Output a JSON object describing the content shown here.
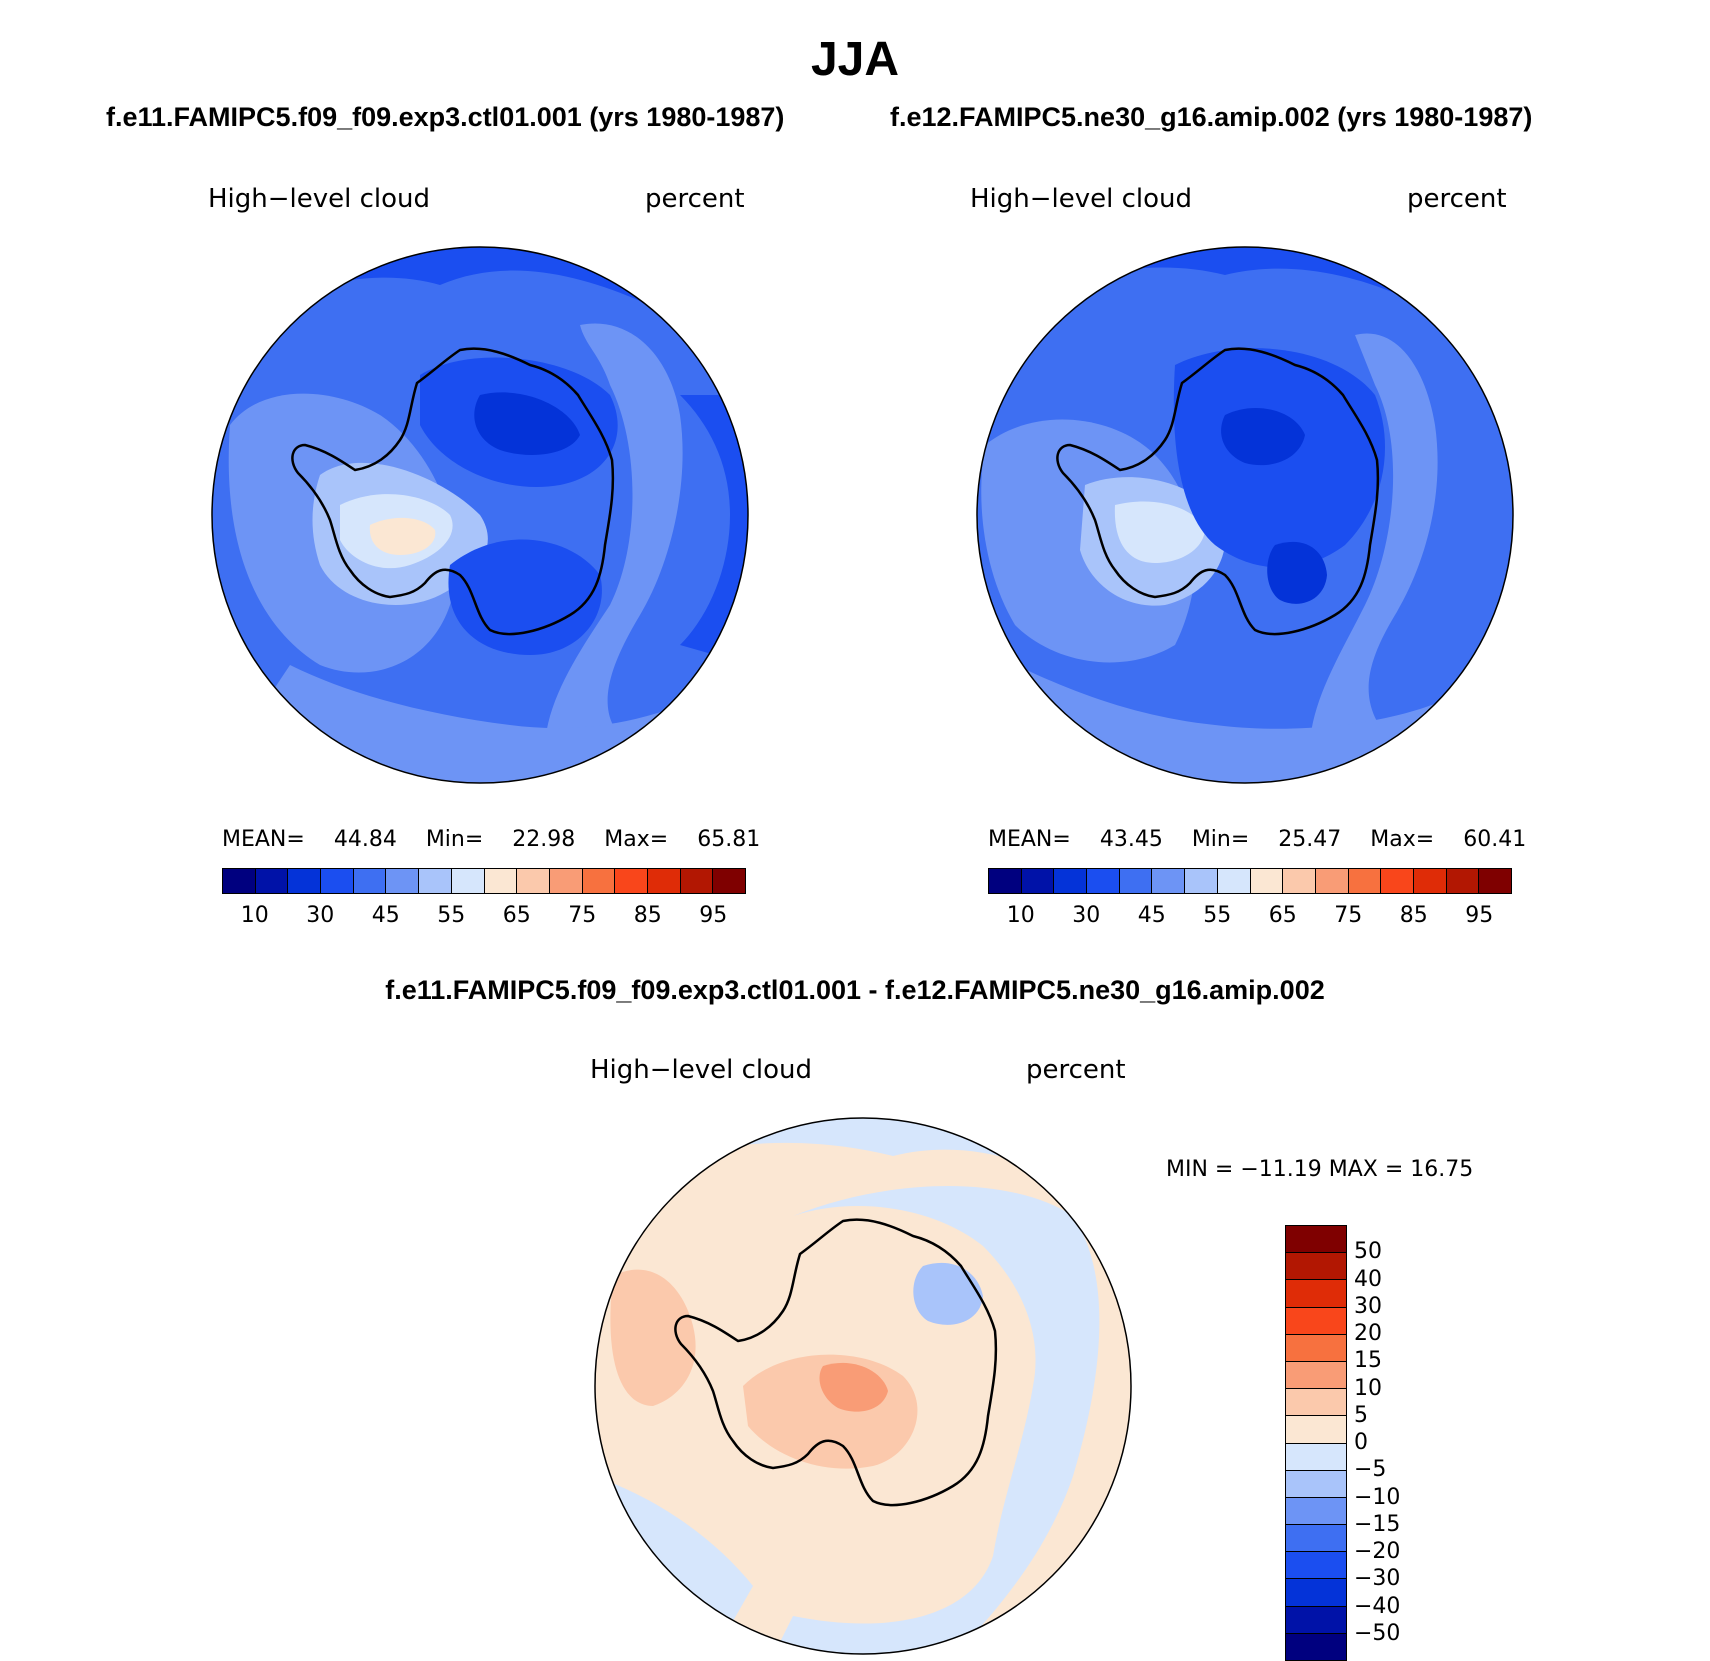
{
  "figure": {
    "title": "JJA",
    "diff_title": "f.e11.FAMIPC5.f09_f09.exp3.ctl01.001 - f.e12.FAMIPC5.ne30_g16.amip.002"
  },
  "panels": [
    {
      "header": "f.e11.FAMIPC5.f09_f09.exp3.ctl01.001 (yrs 1980-1987)",
      "left_label": "High−level cloud",
      "right_label": "percent",
      "stats": {
        "mean_label": "MEAN=",
        "mean": "44.84",
        "min_label": "Min=",
        "min": "22.98",
        "max_label": "Max=",
        "max": "65.81"
      }
    },
    {
      "header": "f.e12.FAMIPC5.ne30_g16.amip.002 (yrs 1980-1987)",
      "left_label": "High−level cloud",
      "right_label": "percent",
      "stats": {
        "mean_label": "MEAN=",
        "mean": "43.45",
        "min_label": "Min=",
        "min": "25.47",
        "max_label": "Max=",
        "max": "60.41"
      }
    },
    {
      "header": "",
      "left_label": "High−level cloud",
      "right_label": "percent",
      "stats": {
        "minmax_text": "MIN = −11.19 MAX =   16.75"
      }
    }
  ],
  "colors": {
    "abs_scale": [
      "#00007f",
      "#0012a8",
      "#0433d8",
      "#1b4ef0",
      "#3e6ff2",
      "#6d94f5",
      "#a9c4fa",
      "#d6e6fc",
      "#fbe7d3",
      "#fbc9ac",
      "#f99c76",
      "#f7713f",
      "#f9461b",
      "#df2c07",
      "#b21702",
      "#7f0000"
    ],
    "diff_scale": [
      "#7f0000",
      "#b21702",
      "#df2c07",
      "#f9461b",
      "#f7713f",
      "#f99c76",
      "#fbc9ac",
      "#fbe7d3",
      "#d6e6fc",
      "#a9c4fa",
      "#6d94f5",
      "#3e6ff2",
      "#1b4ef0",
      "#0433d8",
      "#0012a8",
      "#00007f"
    ]
  },
  "chart_data": [
    {
      "type": "heatmap",
      "title": "f.e11.FAMIPC5.f09_f09.exp3.ctl01.001 (yrs 1980-1987)",
      "projection": "polar stereographic (south pole)",
      "variable": "High-level cloud",
      "units": "percent",
      "colorbar_levels": [
        10,
        20,
        30,
        40,
        45,
        50,
        55,
        60,
        65,
        70,
        75,
        80,
        85,
        90,
        95
      ],
      "colorbar_tick_labels": [
        "10",
        "30",
        "45",
        "55",
        "65",
        "75",
        "85",
        "95"
      ],
      "mean": 44.84,
      "min": 22.98,
      "max": 65.81
    },
    {
      "type": "heatmap",
      "title": "f.e12.FAMIPC5.ne30_g16.amip.002 (yrs 1980-1987)",
      "projection": "polar stereographic (south pole)",
      "variable": "High-level cloud",
      "units": "percent",
      "colorbar_levels": [
        10,
        20,
        30,
        40,
        45,
        50,
        55,
        60,
        65,
        70,
        75,
        80,
        85,
        90,
        95
      ],
      "colorbar_tick_labels": [
        "10",
        "30",
        "45",
        "55",
        "65",
        "75",
        "85",
        "95"
      ],
      "mean": 43.45,
      "min": 25.47,
      "max": 60.41
    },
    {
      "type": "heatmap",
      "title": "f.e11.FAMIPC5.f09_f09.exp3.ctl01.001 - f.e12.FAMIPC5.ne30_g16.amip.002",
      "projection": "polar stereographic (south pole)",
      "variable": "High-level cloud",
      "units": "percent",
      "colorbar_levels": [
        50,
        40,
        30,
        20,
        15,
        10,
        5,
        0,
        -5,
        -10,
        -15,
        -20,
        -30,
        -40,
        -50
      ],
      "colorbar_tick_labels": [
        "50",
        "40",
        "30",
        "20",
        "15",
        "10",
        "5",
        "0",
        "−5",
        "−10",
        "−15",
        "−20",
        "−30",
        "−40",
        "−50"
      ],
      "min": -11.19,
      "max": 16.75
    }
  ]
}
